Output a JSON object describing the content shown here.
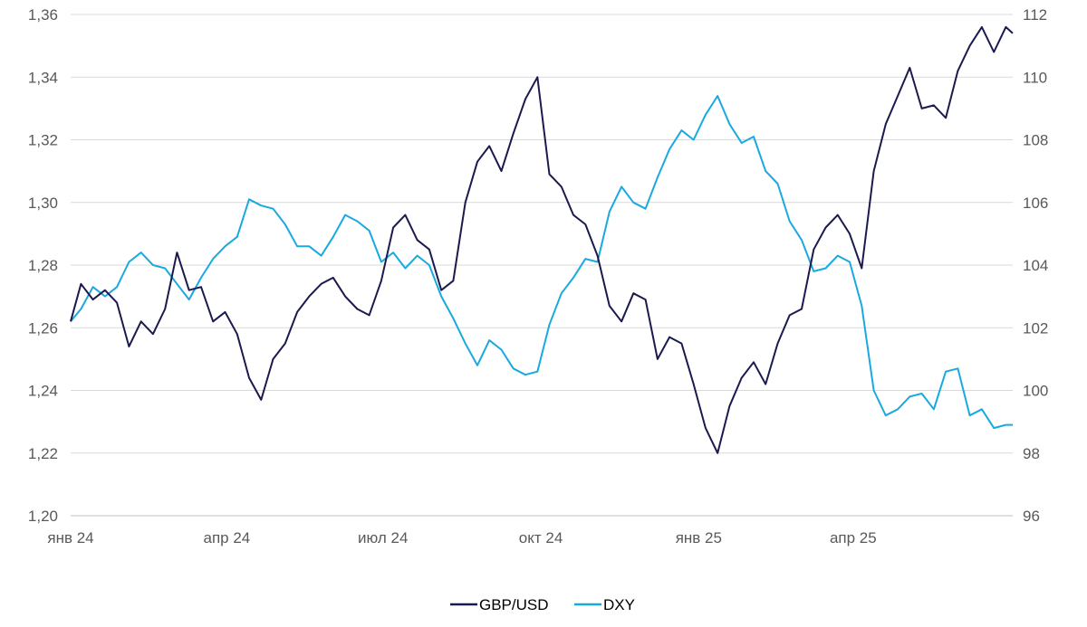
{
  "chart_data": {
    "type": "line",
    "title": "",
    "xlabel": "",
    "ylabel": "",
    "grid": true,
    "legend_position": "bottom",
    "x_labels": [
      "янв 24",
      "апр 24",
      "июл 24",
      "окт 24",
      "янв 25",
      "апр 25"
    ],
    "x_label_dates": [
      "2024-01-01",
      "2024-04-01",
      "2024-07-01",
      "2024-10-01",
      "2025-01-01",
      "2025-04-01"
    ],
    "x_range": [
      "2024-01-01",
      "2025-07-03"
    ],
    "y_left": {
      "series": "GBP/USD",
      "ylim": [
        1.2,
        1.36
      ],
      "ticks": [
        "1,20",
        "1,22",
        "1,24",
        "1,26",
        "1,28",
        "1,30",
        "1,32",
        "1,34",
        "1,36"
      ]
    },
    "y_right": {
      "series": "DXY",
      "ylim": [
        96,
        112
      ],
      "ticks": [
        "96",
        "98",
        "100",
        "102",
        "104",
        "106",
        "108",
        "110",
        "112"
      ]
    },
    "series": [
      {
        "name": "GBP/USD",
        "axis": "left",
        "color": "#1b1a4e",
        "x": [
          "2024-01-01",
          "2024-01-07",
          "2024-01-14",
          "2024-01-21",
          "2024-01-28",
          "2024-02-04",
          "2024-02-11",
          "2024-02-18",
          "2024-02-25",
          "2024-03-03",
          "2024-03-10",
          "2024-03-17",
          "2024-03-24",
          "2024-03-31",
          "2024-04-07",
          "2024-04-14",
          "2024-04-21",
          "2024-04-28",
          "2024-05-05",
          "2024-05-12",
          "2024-05-19",
          "2024-05-26",
          "2024-06-02",
          "2024-06-09",
          "2024-06-16",
          "2024-06-23",
          "2024-06-30",
          "2024-07-07",
          "2024-07-14",
          "2024-07-21",
          "2024-07-28",
          "2024-08-04",
          "2024-08-11",
          "2024-08-18",
          "2024-08-25",
          "2024-09-01",
          "2024-09-08",
          "2024-09-15",
          "2024-09-22",
          "2024-09-29",
          "2024-10-06",
          "2024-10-13",
          "2024-10-20",
          "2024-10-27",
          "2024-11-03",
          "2024-11-10",
          "2024-11-17",
          "2024-11-24",
          "2024-12-01",
          "2024-12-08",
          "2024-12-15",
          "2024-12-22",
          "2024-12-29",
          "2025-01-05",
          "2025-01-12",
          "2025-01-19",
          "2025-01-26",
          "2025-02-02",
          "2025-02-09",
          "2025-02-16",
          "2025-02-23",
          "2025-03-02",
          "2025-03-09",
          "2025-03-16",
          "2025-03-23",
          "2025-03-30",
          "2025-04-06",
          "2025-04-13",
          "2025-04-20",
          "2025-04-27",
          "2025-05-04",
          "2025-05-11",
          "2025-05-18",
          "2025-05-25",
          "2025-06-01",
          "2025-06-08",
          "2025-06-15",
          "2025-06-22",
          "2025-06-29",
          "2025-07-03"
        ],
        "values": [
          1.262,
          1.274,
          1.269,
          1.272,
          1.268,
          1.254,
          1.262,
          1.258,
          1.266,
          1.284,
          1.272,
          1.273,
          1.262,
          1.265,
          1.258,
          1.244,
          1.237,
          1.25,
          1.255,
          1.265,
          1.27,
          1.274,
          1.276,
          1.27,
          1.266,
          1.264,
          1.275,
          1.292,
          1.296,
          1.288,
          1.285,
          1.272,
          1.275,
          1.3,
          1.313,
          1.318,
          1.31,
          1.322,
          1.333,
          1.34,
          1.309,
          1.305,
          1.296,
          1.293,
          1.283,
          1.267,
          1.262,
          1.271,
          1.269,
          1.25,
          1.257,
          1.255,
          1.242,
          1.228,
          1.22,
          1.235,
          1.244,
          1.249,
          1.242,
          1.255,
          1.264,
          1.266,
          1.285,
          1.292,
          1.296,
          1.29,
          1.279,
          1.31,
          1.325,
          1.334,
          1.343,
          1.33,
          1.331,
          1.327,
          1.342,
          1.35,
          1.356,
          1.348,
          1.356,
          1.354
        ]
      },
      {
        "name": "DXY",
        "axis": "right",
        "color": "#19a9e1",
        "x": [
          "2024-01-01",
          "2024-01-07",
          "2024-01-14",
          "2024-01-21",
          "2024-01-28",
          "2024-02-04",
          "2024-02-11",
          "2024-02-18",
          "2024-02-25",
          "2024-03-03",
          "2024-03-10",
          "2024-03-17",
          "2024-03-24",
          "2024-03-31",
          "2024-04-07",
          "2024-04-14",
          "2024-04-21",
          "2024-04-28",
          "2024-05-05",
          "2024-05-12",
          "2024-05-19",
          "2024-05-26",
          "2024-06-02",
          "2024-06-09",
          "2024-06-16",
          "2024-06-23",
          "2024-06-30",
          "2024-07-07",
          "2024-07-14",
          "2024-07-21",
          "2024-07-28",
          "2024-08-04",
          "2024-08-11",
          "2024-08-18",
          "2024-08-25",
          "2024-09-01",
          "2024-09-08",
          "2024-09-15",
          "2024-09-22",
          "2024-09-29",
          "2024-10-06",
          "2024-10-13",
          "2024-10-20",
          "2024-10-27",
          "2024-11-03",
          "2024-11-10",
          "2024-11-17",
          "2024-11-24",
          "2024-12-01",
          "2024-12-08",
          "2024-12-15",
          "2024-12-22",
          "2024-12-29",
          "2025-01-05",
          "2025-01-12",
          "2025-01-19",
          "2025-01-26",
          "2025-02-02",
          "2025-02-09",
          "2025-02-16",
          "2025-02-23",
          "2025-03-02",
          "2025-03-09",
          "2025-03-16",
          "2025-03-23",
          "2025-03-30",
          "2025-04-06",
          "2025-04-13",
          "2025-04-20",
          "2025-04-27",
          "2025-05-04",
          "2025-05-11",
          "2025-05-18",
          "2025-05-25",
          "2025-06-01",
          "2025-06-08",
          "2025-06-15",
          "2025-06-22",
          "2025-06-29",
          "2025-07-03"
        ],
        "values": [
          102.2,
          102.6,
          103.3,
          103.0,
          103.3,
          104.1,
          104.4,
          104.0,
          103.9,
          103.4,
          102.9,
          103.6,
          104.2,
          104.6,
          104.9,
          106.1,
          105.9,
          105.8,
          105.3,
          104.6,
          104.6,
          104.3,
          104.9,
          105.6,
          105.4,
          105.1,
          104.1,
          104.4,
          103.9,
          104.3,
          104.0,
          103.0,
          102.3,
          101.5,
          100.8,
          101.6,
          101.3,
          100.7,
          100.5,
          100.6,
          102.1,
          103.1,
          103.6,
          104.2,
          104.1,
          105.7,
          106.5,
          106.0,
          105.8,
          106.8,
          107.7,
          108.3,
          108.0,
          108.8,
          109.4,
          108.5,
          107.9,
          108.1,
          107.0,
          106.6,
          105.4,
          104.8,
          103.8,
          103.9,
          104.3,
          104.1,
          102.7,
          100.0,
          99.2,
          99.4,
          99.8,
          99.9,
          99.4,
          100.6,
          100.7,
          99.2,
          99.4,
          98.8,
          98.9,
          98.9
        ]
      }
    ]
  }
}
